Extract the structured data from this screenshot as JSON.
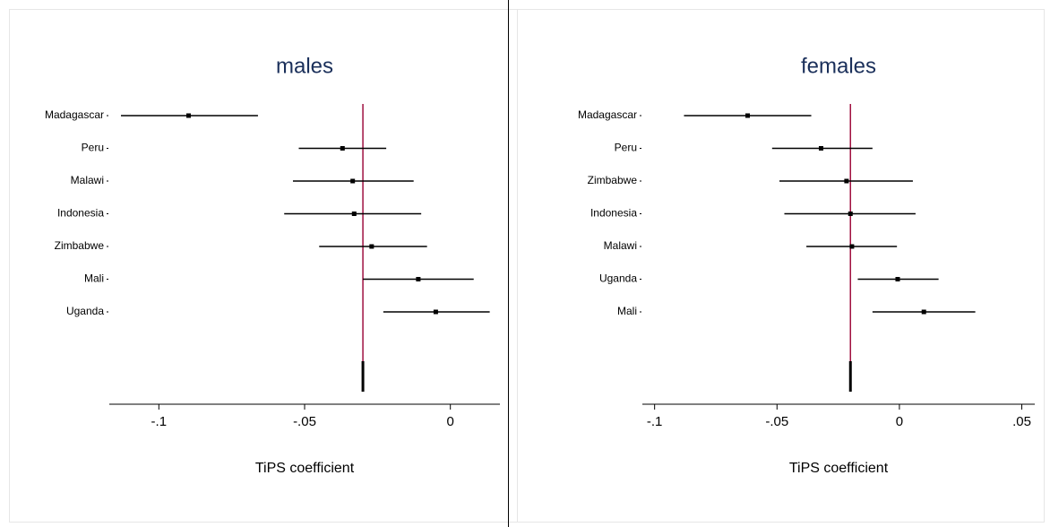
{
  "chart_data": [
    {
      "type": "forest",
      "title": "males",
      "x_label": "TiPS coefficient",
      "categories": [
        "Madagascar",
        "Peru",
        "Malawi",
        "Indonesia",
        "Zimbabwe",
        "Mali",
        "Uganda"
      ],
      "values": [
        -0.0898,
        -0.037,
        -0.0335,
        -0.033,
        -0.027,
        -0.011,
        -0.005
      ],
      "lower": [
        -0.113,
        -0.052,
        -0.054,
        -0.057,
        -0.045,
        -0.03,
        -0.023
      ],
      "upper": [
        -0.066,
        -0.022,
        -0.0126,
        -0.01,
        -0.008,
        0.008,
        0.0135
      ],
      "color": "#000000",
      "reference_line": -0.03,
      "reference_color": "#a01040",
      "xlim": [
        -0.117,
        0.017
      ],
      "xticks": [
        {
          "value": -0.1,
          "label": "-.1"
        },
        {
          "value": -0.05,
          "label": "-.05"
        },
        0
      ]
    },
    {
      "type": "forest",
      "title": "females",
      "x_label": "TiPS coefficient",
      "categories": [
        "Madagascar",
        "Peru",
        "Zimbabwe",
        "Indonesia",
        "Malawi",
        "Uganda",
        "Mali"
      ],
      "values": [
        -0.062,
        -0.032,
        -0.0216,
        -0.02,
        -0.0194,
        -0.0007,
        0.01
      ],
      "lower": [
        -0.088,
        -0.052,
        -0.049,
        -0.047,
        -0.038,
        -0.017,
        -0.011
      ],
      "upper": [
        -0.036,
        -0.011,
        0.0055,
        0.0066,
        -0.001,
        0.016,
        0.031
      ],
      "color": "#000000",
      "reference_line": -0.02,
      "reference_color": "#a01040",
      "xlim": [
        -0.105,
        0.0553
      ],
      "xticks": [
        {
          "value": -0.1,
          "label": "-.1"
        },
        {
          "value": -0.05,
          "label": "-.05"
        },
        0,
        {
          "value": 0.05,
          "label": ".05"
        }
      ]
    }
  ]
}
